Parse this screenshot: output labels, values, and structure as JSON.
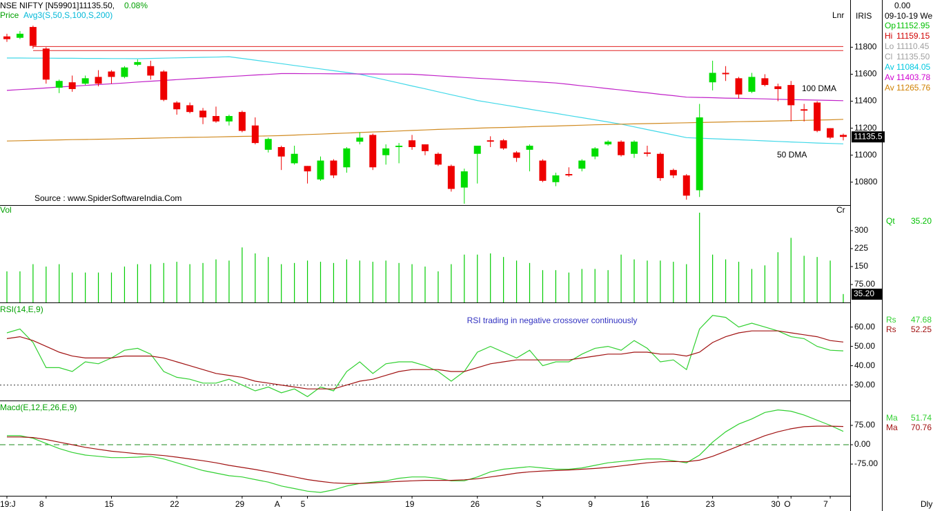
{
  "chart_data": [
    {
      "type": "candlestick",
      "title": "NSE NIFTY [N59901]11135.50,",
      "change": "0.08%",
      "price_label": "Price",
      "overlay_label": "Avg3(S,50,S,100,S,200)",
      "scale_label": "Lnr",
      "annotations": [
        "100 DMA",
        "50 DMA",
        "Source : www.SpiderSoftwareIndia.Com"
      ],
      "last_label": "11135.5",
      "readout": [
        {
          "label": "Op",
          "value": "11152.95",
          "color": "#00c000"
        },
        {
          "label": "Hi",
          "value": "11159.15",
          "color": "#d00000"
        },
        {
          "label": "Lo",
          "value": "11110.45",
          "color": "#a0a0a0"
        },
        {
          "label": "Cl",
          "value": "11135.50",
          "color": "#a0a0a0"
        },
        {
          "label": "Av",
          "value": "11084.05",
          "color": "#00c8e0"
        },
        {
          "label": "Av",
          "value": "11403.78",
          "color": "#d000d0"
        },
        {
          "label": "Av",
          "value": "11265.76",
          "color": "#d08000"
        }
      ],
      "up_color": "#00dd00",
      "down_color": "#ee0000",
      "open": [
        11880,
        11870,
        11950,
        11790,
        11500,
        11540,
        11530,
        11580,
        11620,
        11580,
        11670,
        11660,
        11620,
        11390,
        11370,
        11330,
        11290,
        11250,
        11320,
        11220,
        11040,
        11060,
        10940,
        10920,
        10820,
        10960,
        10910,
        11100,
        11150,
        11000,
        11060,
        11110,
        11080,
        11010,
        10920,
        10760,
        11010,
        11110,
        11110,
        11020,
        11040,
        10960,
        10800,
        10860,
        10900,
        10990,
        11080,
        11100,
        11010,
        11020,
        11010,
        10890,
        10850,
        10740,
        11540,
        11610,
        11570,
        11470,
        11570,
        11510,
        11520,
        11340,
        11390,
        11200,
        11150
      ],
      "high": [
        11900,
        11920,
        11960,
        11800,
        11560,
        11590,
        11590,
        11630,
        11630,
        11660,
        11710,
        11700,
        11630,
        11400,
        11390,
        11350,
        11360,
        11300,
        11330,
        11280,
        11130,
        11070,
        11070,
        10920,
        10990,
        10970,
        11060,
        11170,
        11160,
        11080,
        11090,
        11150,
        11080,
        11020,
        10930,
        10900,
        11070,
        11140,
        11120,
        11030,
        11080,
        10970,
        10870,
        10910,
        10970,
        11060,
        11110,
        11110,
        11110,
        11070,
        11020,
        10900,
        10860,
        11380,
        11700,
        11660,
        11580,
        11610,
        11600,
        11530,
        11550,
        11380,
        11400,
        11200,
        11160
      ],
      "low": [
        11840,
        11860,
        11790,
        11530,
        11460,
        11470,
        11520,
        11510,
        11530,
        11570,
        11660,
        11560,
        11400,
        11300,
        11310,
        11230,
        11240,
        11220,
        11170,
        11080,
        11020,
        10890,
        10930,
        10790,
        10810,
        10830,
        10870,
        11080,
        10890,
        10930,
        10940,
        11040,
        11000,
        10920,
        10730,
        10640,
        10790,
        11060,
        11040,
        10950,
        10880,
        10800,
        10770,
        10840,
        10880,
        10970,
        11070,
        10990,
        10980,
        10990,
        10810,
        10830,
        10670,
        10690,
        11480,
        11550,
        11420,
        11460,
        11510,
        11400,
        11250,
        11250,
        11170,
        11120,
        11110
      ],
      "close": [
        11860,
        11900,
        11810,
        11560,
        11550,
        11490,
        11570,
        11530,
        11580,
        11650,
        11690,
        11590,
        11410,
        11340,
        11320,
        11280,
        11250,
        11290,
        11180,
        11090,
        11120,
        10990,
        11010,
        10880,
        10960,
        10850,
        11050,
        11130,
        10910,
        11050,
        11070,
        11060,
        11030,
        10930,
        10750,
        10880,
        11070,
        11100,
        11050,
        10980,
        11070,
        10810,
        10850,
        10850,
        10960,
        11050,
        11100,
        11000,
        11100,
        11010,
        10830,
        10850,
        10700,
        11280,
        11610,
        11600,
        11450,
        11580,
        11520,
        11490,
        11370,
        11330,
        11180,
        11130,
        11135.5
      ],
      "series": [
        {
          "name": "Av",
          "color": "#40d8e8",
          "values": [
            11720,
            11720,
            11719,
            11719,
            11718,
            11718,
            11717,
            11717,
            11716,
            11716,
            11715,
            11717,
            11719,
            11721,
            11723,
            11725,
            11727,
            11730,
            11717,
            11704,
            11691,
            11678,
            11665,
            11652,
            11639,
            11626,
            11613,
            11600,
            11578,
            11557,
            11535,
            11513,
            11492,
            11470,
            11448,
            11427,
            11405,
            11389,
            11373,
            11357,
            11341,
            11325,
            11310,
            11294,
            11278,
            11262,
            11246,
            11230,
            11210,
            11190,
            11170,
            11150,
            11130,
            11126,
            11122,
            11118,
            11114,
            11110,
            11106,
            11102,
            11098,
            11094,
            11090,
            11087,
            11084.05
          ]
        },
        {
          "name": "Av",
          "color": "#c020c8",
          "values": [
            11480,
            11486,
            11492,
            11498,
            11505,
            11511,
            11517,
            11523,
            11529,
            11535,
            11542,
            11548,
            11554,
            11560,
            11566,
            11571,
            11577,
            11583,
            11588,
            11594,
            11599,
            11605,
            11605,
            11604,
            11604,
            11603,
            11603,
            11602,
            11602,
            11601,
            11601,
            11600,
            11594,
            11588,
            11582,
            11576,
            11570,
            11565,
            11559,
            11553,
            11547,
            11541,
            11535,
            11525,
            11514,
            11504,
            11493,
            11483,
            11472,
            11462,
            11451,
            11441,
            11430,
            11428,
            11426,
            11423,
            11421,
            11419,
            11417,
            11414,
            11412,
            11410,
            11408,
            11406,
            11403.78
          ]
        },
        {
          "name": "Av",
          "color": "#d08a20",
          "values": [
            11105,
            11107,
            11109,
            11111,
            11113,
            11115,
            11116,
            11118,
            11120,
            11122,
            11124,
            11126,
            11128,
            11130,
            11132,
            11133,
            11135,
            11137,
            11139,
            11141,
            11143,
            11145,
            11149,
            11153,
            11156,
            11160,
            11164,
            11168,
            11172,
            11175,
            11179,
            11183,
            11187,
            11191,
            11194,
            11196,
            11200,
            11203,
            11205,
            11208,
            11211,
            11214,
            11216,
            11219,
            11222,
            11225,
            11227,
            11230,
            11232,
            11234,
            11236,
            11238,
            11240,
            11242,
            11244,
            11246,
            11248,
            11250,
            11252,
            11254,
            11256,
            11258,
            11260,
            11262,
            11265.76
          ]
        }
      ],
      "hlines": [
        11805,
        11775
      ],
      "hline_color": "#e02020",
      "ylim": [
        10630,
        12150
      ],
      "yticks": [
        10800,
        11000,
        11200,
        11400,
        11600,
        11800
      ]
    },
    {
      "type": "bar",
      "title": "Vol",
      "unit_label": "Cr",
      "readout": [
        {
          "label": "Qt",
          "value": "35.20",
          "color": "#00c000"
        }
      ],
      "last_label": "35.20",
      "color": "#00cc00",
      "values": [
        130,
        130,
        160,
        150,
        160,
        125,
        125,
        125,
        125,
        150,
        160,
        160,
        165,
        170,
        160,
        165,
        180,
        175,
        230,
        205,
        190,
        160,
        165,
        175,
        170,
        165,
        180,
        175,
        170,
        175,
        165,
        160,
        150,
        130,
        160,
        200,
        200,
        205,
        190,
        175,
        165,
        135,
        135,
        125,
        140,
        140,
        135,
        200,
        180,
        175,
        175,
        170,
        160,
        375,
        200,
        180,
        170,
        140,
        155,
        210,
        270,
        195,
        190,
        175,
        35.2
      ],
      "ylim": [
        0,
        404
      ],
      "yticks": [
        {
          "value": 75,
          "label": "75.00"
        },
        150,
        225,
        300
      ]
    },
    {
      "type": "line",
      "title": "RSI(14,E,9)",
      "annotation": "RSI trading in negative crossover continuously",
      "series": [
        {
          "name": "Rs",
          "color": "#30d030",
          "values": [
            57,
            59,
            52,
            39,
            39,
            37,
            42,
            41,
            44,
            48,
            49,
            46,
            37,
            34,
            33,
            31,
            31,
            33,
            30,
            27,
            29,
            26,
            28,
            24,
            29,
            27,
            37,
            42,
            36,
            41,
            42,
            42,
            40,
            37,
            32,
            37,
            47,
            50,
            47,
            44,
            48,
            40,
            42,
            42,
            46,
            49,
            50,
            48,
            53,
            49,
            42,
            43,
            38,
            59,
            66,
            65,
            60,
            62,
            60,
            58,
            55,
            54,
            50,
            48,
            47.68
          ]
        },
        {
          "name": "Rs",
          "color": "#a01010",
          "values": [
            54,
            55,
            53,
            50,
            47,
            45,
            44,
            44,
            44,
            45,
            45,
            45,
            44,
            42,
            40,
            38,
            36,
            35,
            34,
            32,
            31,
            30,
            29,
            28,
            28,
            28,
            30,
            32,
            33,
            35,
            37,
            38,
            38,
            38,
            37,
            37,
            39,
            41,
            42,
            43,
            43,
            43,
            43,
            43,
            44,
            45,
            46,
            46,
            47,
            47,
            46,
            46,
            45,
            47,
            52,
            55,
            57,
            58,
            58,
            58,
            57,
            56,
            55,
            53,
            52.25
          ]
        }
      ],
      "hline": 30,
      "ylim": [
        22,
        72
      ],
      "yticks": [
        {
          "value": 60,
          "label": "60.00"
        },
        {
          "value": 50,
          "label": "50.00"
        },
        {
          "value": 40,
          "label": "40.00"
        },
        {
          "value": 30,
          "label": "30.00"
        }
      ]
    },
    {
      "type": "line",
      "title": "Macd(E,12,E,26,E,9)",
      "categories": [
        "19:J",
        null,
        null,
        "8",
        null,
        null,
        null,
        null,
        "15",
        null,
        null,
        null,
        null,
        "22",
        null,
        null,
        null,
        null,
        "29",
        null,
        null,
        "A",
        null,
        "5",
        null,
        null,
        null,
        null,
        null,
        null,
        null,
        "19",
        null,
        null,
        null,
        null,
        "26",
        null,
        null,
        null,
        null,
        "S",
        null,
        null,
        null,
        "9",
        null,
        null,
        null,
        "16",
        null,
        null,
        null,
        null,
        "23",
        null,
        null,
        null,
        null,
        "30",
        "O",
        null,
        null,
        "7",
        null
      ],
      "series": [
        {
          "name": "Ma",
          "color": "#30d030",
          "values": [
            35,
            35,
            25,
            5,
            -15,
            -30,
            -40,
            -45,
            -50,
            -50,
            -48,
            -45,
            -55,
            -70,
            -85,
            -100,
            -110,
            -120,
            -125,
            -135,
            -145,
            -160,
            -170,
            -180,
            -185,
            -175,
            -160,
            -150,
            -145,
            -140,
            -130,
            -125,
            -125,
            -130,
            -140,
            -140,
            -125,
            -105,
            -95,
            -90,
            -85,
            -90,
            -95,
            -95,
            -90,
            -80,
            -70,
            -65,
            -60,
            -55,
            -55,
            -62,
            -70,
            -40,
            10,
            50,
            80,
            100,
            125,
            135,
            130,
            115,
            95,
            75,
            51.74
          ]
        },
        {
          "name": "Ma",
          "color": "#a01010",
          "values": [
            30,
            30,
            28,
            20,
            10,
            0,
            -10,
            -18,
            -25,
            -30,
            -35,
            -38,
            -42,
            -48,
            -55,
            -62,
            -70,
            -80,
            -88,
            -96,
            -105,
            -115,
            -125,
            -135,
            -142,
            -148,
            -150,
            -150,
            -148,
            -145,
            -142,
            -140,
            -138,
            -138,
            -138,
            -136,
            -132,
            -125,
            -118,
            -110,
            -105,
            -102,
            -100,
            -98,
            -95,
            -92,
            -88,
            -82,
            -76,
            -70,
            -66,
            -65,
            -66,
            -60,
            -45,
            -25,
            -5,
            15,
            35,
            50,
            62,
            70,
            72,
            72,
            70.76
          ]
        }
      ],
      "hline": 0,
      "ylim": [
        -198,
        166
      ],
      "yticks": [
        {
          "value": 75,
          "label": "75.00"
        },
        {
          "value": 0,
          "label": "0.00"
        },
        {
          "value": -75,
          "label": "-75.00"
        }
      ]
    }
  ],
  "sidebar": {
    "app": "IRIS",
    "top_value": "0.00",
    "date": "09-10-19 We"
  },
  "footer": "Dly"
}
